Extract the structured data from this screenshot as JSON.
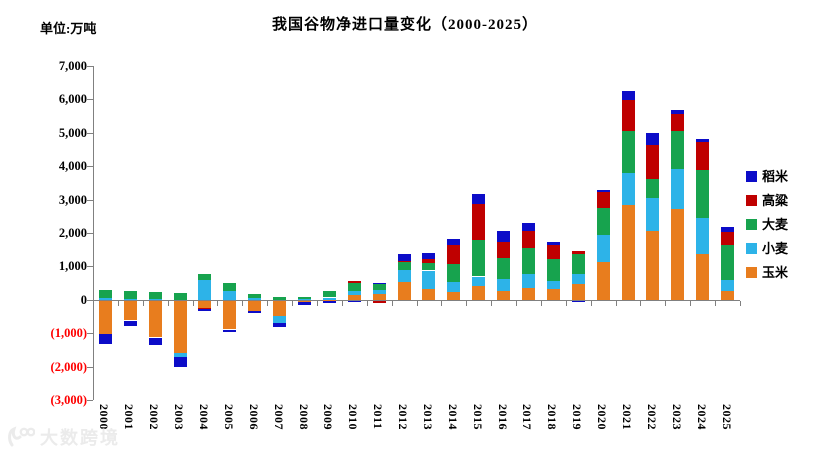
{
  "page": {
    "unit_label": "单位:万吨",
    "title": "我国谷物净进口量变化（2000-2025）",
    "watermark": "大数跨境"
  },
  "chart_data": {
    "type": "bar",
    "subtype": "stacked",
    "title": "我国谷物净进口量变化（2000-2025）",
    "unit": "万吨",
    "grid": false,
    "legend_position": "right",
    "legend_order": [
      "稻米",
      "高粱",
      "大麦",
      "小麦",
      "玉米"
    ],
    "categories": [
      "2000",
      "2001",
      "2002",
      "2003",
      "2004",
      "2005",
      "2006",
      "2007",
      "2008",
      "2009",
      "2010",
      "2011",
      "2012",
      "2013",
      "2014",
      "2015",
      "2016",
      "2017",
      "2018",
      "2019",
      "2020",
      "2021",
      "2022",
      "2023",
      "2024",
      "2025"
    ],
    "series": [
      {
        "name": "玉米",
        "color": "#e87d1e",
        "values": [
          -1000,
          -590,
          -1100,
          -1560,
          -210,
          -860,
          -300,
          -465,
          -25,
          10,
          155,
          175,
          520,
          325,
          230,
          400,
          270,
          340,
          310,
          460,
          1130,
          2835,
          2060,
          2710,
          1360,
          260
        ]
      },
      {
        "name": "小麦",
        "color": "#2db3e8",
        "values": [
          60,
          30,
          15,
          -115,
          580,
          270,
          55,
          -195,
          15,
          60,
          120,
          115,
          370,
          550,
          295,
          295,
          340,
          430,
          260,
          310,
          815,
          970,
          990,
          1210,
          1090,
          340
        ]
      },
      {
        "name": "大麦",
        "color": "#17a34e",
        "values": [
          240,
          240,
          225,
          220,
          200,
          240,
          115,
          80,
          85,
          180,
          235,
          175,
          250,
          235,
          540,
          1100,
          650,
          790,
          645,
          610,
          810,
          1250,
          580,
          1130,
          1425,
          1030
        ]
      },
      {
        "name": "高粱",
        "color": "#bf0000",
        "values": [
          0,
          0,
          0,
          0,
          -45,
          -20,
          0,
          0,
          0,
          0,
          50,
          -55,
          10,
          110,
          575,
          1060,
          470,
          490,
          430,
          80,
          480,
          940,
          1015,
          520,
          865,
          390
        ]
      },
      {
        "name": "稻米",
        "color": "#0c0cc8",
        "values": [
          -300,
          -165,
          -230,
          -310,
          -55,
          -55,
          -70,
          -125,
          -95,
          -70,
          -50,
          45,
          230,
          180,
          190,
          310,
          330,
          255,
          95,
          -40,
          65,
          255,
          355,
          105,
          90,
          170
        ]
      }
    ],
    "ylim": [
      -3000,
      7000
    ],
    "ytick_step": 1000,
    "ytick_labels": [
      "7,000",
      "6,000",
      "5,000",
      "4,000",
      "3,000",
      "2,000",
      "1,000",
      "0",
      "(1,000)",
      "(2,000)",
      "(3,000)"
    ],
    "axis_color": "#808080",
    "negative_label_color": "#ff0000"
  }
}
